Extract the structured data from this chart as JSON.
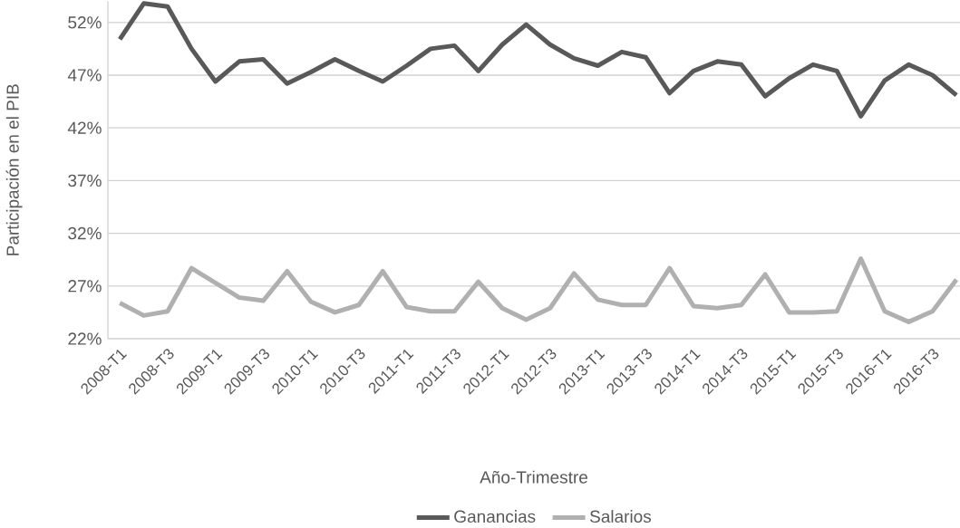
{
  "chart_data": {
    "type": "line",
    "xlabel": "Año-Trimestre",
    "ylabel": "Participación en el PIB",
    "categories": [
      "2008-T1",
      null,
      "2008-T3",
      null,
      "2009-T1",
      null,
      "2009-T3",
      null,
      "2010-T1",
      null,
      "2010-T3",
      null,
      "2011-T1",
      null,
      "2011-T3",
      null,
      "2012-T1",
      null,
      "2012-T3",
      null,
      "2013-T1",
      null,
      "2013-T3",
      null,
      "2014-T1",
      null,
      "2014-T3",
      null,
      "2015-T1",
      null,
      "2015-T3",
      null,
      "2016-T1",
      null,
      "2016-T3",
      null
    ],
    "series": [
      {
        "name": "Ganancias",
        "color": "#595959",
        "values": [
          50.4,
          53.8,
          53.5,
          49.5,
          46.4,
          48.3,
          48.5,
          46.2,
          47.3,
          48.5,
          47.4,
          46.4,
          47.9,
          49.5,
          49.8,
          47.4,
          49.9,
          51.8,
          49.9,
          48.6,
          47.9,
          49.2,
          48.7,
          45.3,
          47.4,
          48.3,
          48.0,
          45.0,
          46.7,
          48.0,
          47.4,
          43.1,
          46.5,
          48.0,
          47.0,
          45.1
        ]
      },
      {
        "name": "Salarios",
        "color": "#b0b0b0",
        "values": [
          25.4,
          24.2,
          24.6,
          28.7,
          27.3,
          25.9,
          25.6,
          28.4,
          25.5,
          24.5,
          25.2,
          28.4,
          25.0,
          24.6,
          24.6,
          27.4,
          24.9,
          23.8,
          24.9,
          28.2,
          25.7,
          25.2,
          25.2,
          28.7,
          25.1,
          24.9,
          25.2,
          28.1,
          24.5,
          24.5,
          24.6,
          29.6,
          24.6,
          23.6,
          24.6,
          27.6
        ]
      }
    ],
    "ylim": [
      22,
      54
    ],
    "yticks": [
      {
        "value": 22,
        "label": "22%"
      },
      {
        "value": 27,
        "label": "27%"
      },
      {
        "value": 32,
        "label": "32%"
      },
      {
        "value": 37,
        "label": "37%"
      },
      {
        "value": 42,
        "label": "42%"
      },
      {
        "value": 47,
        "label": "47%"
      },
      {
        "value": 52,
        "label": "52%"
      }
    ],
    "grid": "y",
    "legend": "bottom",
    "marker": "none",
    "line_style": "solid"
  }
}
